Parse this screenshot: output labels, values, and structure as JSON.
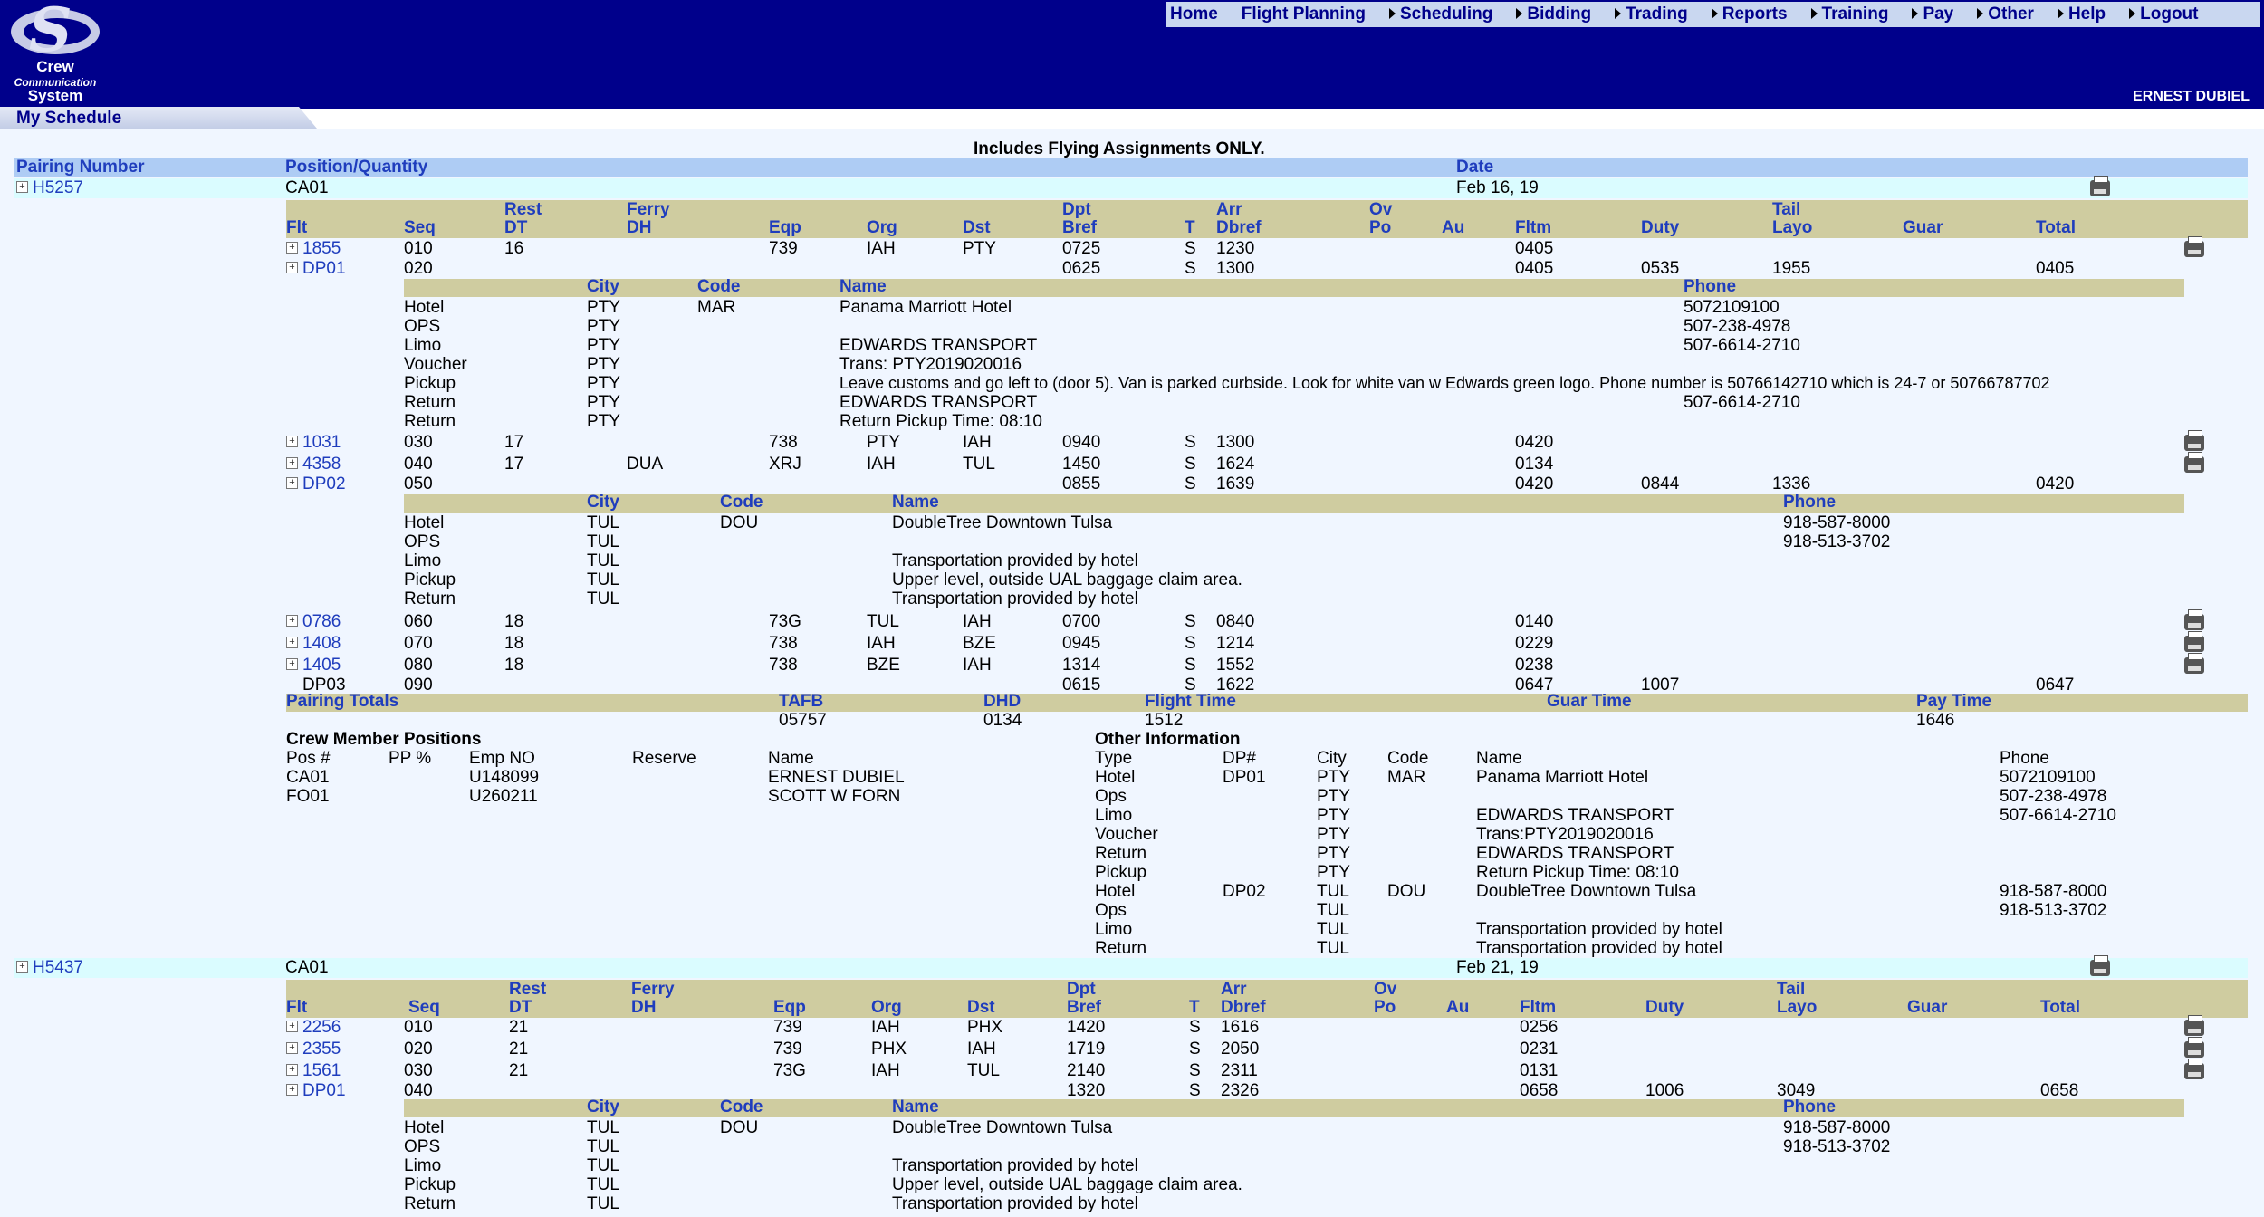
{
  "app": {
    "logo_line1": "Crew",
    "logo_line2": "Communication",
    "logo_line3": "System",
    "section": "My Schedule",
    "user": "ERNEST DUBIEL"
  },
  "menu": [
    {
      "label": "Home",
      "arrow": false
    },
    {
      "label": "Flight Planning",
      "arrow": false
    },
    {
      "label": "Scheduling",
      "arrow": true
    },
    {
      "label": "Bidding",
      "arrow": true
    },
    {
      "label": "Trading",
      "arrow": true
    },
    {
      "label": "Reports",
      "arrow": true
    },
    {
      "label": "Training",
      "arrow": true
    },
    {
      "label": "Pay",
      "arrow": true
    },
    {
      "label": "Other",
      "arrow": true
    },
    {
      "label": "Help",
      "arrow": true
    },
    {
      "label": "Logout",
      "arrow": true
    }
  ],
  "notice": "Includes Flying Assignments ONLY.",
  "top_headers": {
    "pairing": "Pairing Number",
    "position": "Position/Quantity",
    "date": "Date"
  },
  "colors": {
    "header_bar": "#00008b",
    "column_header_bg": "#cfcca0",
    "label_blue": "#1f3dbd",
    "top_header_bg": "#aeccf4",
    "pairing_row_bg": "#dafcff",
    "content_bg": "#f0f6ff"
  },
  "flight_cols": {
    "flt": "Flt",
    "seq": "Seq",
    "rest1": "Rest",
    "rest2": "DT",
    "ferry1": "Ferry",
    "ferry2": "DH",
    "eqp": "Eqp",
    "org": "Org",
    "dst": "Dst",
    "dpt1": "Dpt",
    "dpt2": "Bref",
    "t": "T",
    "arr1": "Arr",
    "arr2": "Dbref",
    "ov1": "Ov",
    "ov2": "Po",
    "au": "Au",
    "fltm": "Fltm",
    "duty": "Duty",
    "tail1": "Tail",
    "tail2": "Layo",
    "guar": "Guar",
    "total": "Total"
  },
  "layover_cols": {
    "city": "City",
    "code": "Code",
    "name": "Name",
    "phone": "Phone"
  },
  "pairings": [
    {
      "id": "H5257",
      "position": "CA01",
      "date": "Feb 16, 19",
      "rows": [
        {
          "kind": "flight",
          "flt": "1855",
          "expand": true,
          "printer": true,
          "seq": "010",
          "rest": "16",
          "dh": "",
          "eqp": "739",
          "org": "IAH",
          "dst": "PTY",
          "dpt": "0725",
          "t": "S",
          "arr": "1230",
          "fltm": "0405",
          "duty": "",
          "layo": "",
          "total": ""
        },
        {
          "kind": "flight",
          "flt": "DP01",
          "expand": true,
          "printer": false,
          "seq": "020",
          "rest": "",
          "dh": "",
          "eqp": "",
          "org": "",
          "dst": "",
          "dpt": "0625",
          "t": "S",
          "arr": "1300",
          "fltm": "0405",
          "duty": "0535",
          "layo": "1955",
          "total": "0405"
        },
        {
          "kind": "layover",
          "variant": "a",
          "items": [
            {
              "type": "Hotel",
              "city": "PTY",
              "code": "MAR",
              "name": "Panama Marriott Hotel",
              "phone": "5072109100"
            },
            {
              "type": "OPS",
              "city": "PTY",
              "code": "",
              "name": "",
              "phone": "507-238-4978"
            },
            {
              "type": "Limo",
              "city": "PTY",
              "code": "",
              "name": "EDWARDS TRANSPORT",
              "phone": "507-6614-2710"
            },
            {
              "type": "Voucher",
              "city": "PTY",
              "code": "",
              "name": "Trans: PTY2019020016",
              "phone": ""
            },
            {
              "type": "Pickup",
              "city": "PTY",
              "code": "",
              "name": "Leave customs and go left to (door 5). Van is parked curbside. Look for white van w Edwards green logo. Phone number is 50766142710 which is 24-7 or 50766787702",
              "phone": ""
            },
            {
              "type": "Return",
              "city": "PTY",
              "code": "",
              "name": "EDWARDS TRANSPORT",
              "phone": "507-6614-2710"
            },
            {
              "type": "Return",
              "city": "PTY",
              "code": "",
              "name": "Return Pickup Time: 08:10",
              "phone": ""
            }
          ]
        },
        {
          "kind": "flight",
          "flt": "1031",
          "expand": true,
          "printer": true,
          "seq": "030",
          "rest": "17",
          "dh": "",
          "eqp": "738",
          "org": "PTY",
          "dst": "IAH",
          "dpt": "0940",
          "t": "S",
          "arr": "1300",
          "fltm": "0420",
          "duty": "",
          "layo": "",
          "total": ""
        },
        {
          "kind": "flight",
          "flt": "4358",
          "expand": true,
          "printer": true,
          "seq": "040",
          "rest": "17",
          "dh": "DUA",
          "eqp": "XRJ",
          "org": "IAH",
          "dst": "TUL",
          "dpt": "1450",
          "t": "S",
          "arr": "1624",
          "fltm": "0134",
          "duty": "",
          "layo": "",
          "total": ""
        },
        {
          "kind": "flight",
          "flt": "DP02",
          "expand": true,
          "printer": false,
          "seq": "050",
          "rest": "",
          "dh": "",
          "eqp": "",
          "org": "",
          "dst": "",
          "dpt": "0855",
          "t": "S",
          "arr": "1639",
          "fltm": "0420",
          "duty": "0844",
          "layo": "1336",
          "total": "0420"
        },
        {
          "kind": "layover",
          "variant": "b",
          "items": [
            {
              "type": "Hotel",
              "city": "TUL",
              "code": "DOU",
              "name": "DoubleTree Downtown Tulsa",
              "phone": "918-587-8000"
            },
            {
              "type": "OPS",
              "city": "TUL",
              "code": "",
              "name": "",
              "phone": "918-513-3702"
            },
            {
              "type": "Limo",
              "city": "TUL",
              "code": "",
              "name": "Transportation provided by hotel",
              "phone": ""
            },
            {
              "type": "Pickup",
              "city": "TUL",
              "code": "",
              "name": "Upper level, outside UAL baggage claim area.",
              "phone": ""
            },
            {
              "type": "Return",
              "city": "TUL",
              "code": "",
              "name": "Transportation provided by hotel",
              "phone": ""
            }
          ]
        },
        {
          "kind": "flight",
          "flt": "0786",
          "expand": true,
          "printer": true,
          "seq": "060",
          "rest": "18",
          "dh": "",
          "eqp": "73G",
          "org": "TUL",
          "dst": "IAH",
          "dpt": "0700",
          "t": "S",
          "arr": "0840",
          "fltm": "0140",
          "duty": "",
          "layo": "",
          "total": ""
        },
        {
          "kind": "flight",
          "flt": "1408",
          "expand": true,
          "printer": true,
          "seq": "070",
          "rest": "18",
          "dh": "",
          "eqp": "738",
          "org": "IAH",
          "dst": "BZE",
          "dpt": "0945",
          "t": "S",
          "arr": "1214",
          "fltm": "0229",
          "duty": "",
          "layo": "",
          "total": ""
        },
        {
          "kind": "flight",
          "flt": "1405",
          "expand": true,
          "printer": true,
          "seq": "080",
          "rest": "18",
          "dh": "",
          "eqp": "738",
          "org": "BZE",
          "dst": "IAH",
          "dpt": "1314",
          "t": "S",
          "arr": "1552",
          "fltm": "0238",
          "duty": "",
          "layo": "",
          "total": ""
        },
        {
          "kind": "flight",
          "flt": "DP03",
          "expand": false,
          "printer": false,
          "seq": "090",
          "rest": "",
          "dh": "",
          "eqp": "",
          "org": "",
          "dst": "",
          "dpt": "0615",
          "t": "S",
          "arr": "1622",
          "fltm": "0647",
          "duty": "1007",
          "layo": "",
          "total": "0647"
        }
      ],
      "totals": {
        "label": "Pairing Totals",
        "tafb_label": "TAFB",
        "tafb": "05757",
        "dhd_label": "DHD",
        "dhd": "0134",
        "flight_label": "Flight Time",
        "flight": "1512",
        "guar_label": "Guar Time",
        "guar": "",
        "pay_label": "Pay Time",
        "pay": "1646"
      },
      "crew": {
        "title": "Crew Member Positions",
        "headers": {
          "pos": "Pos #",
          "pp": "PP %",
          "emp": "Emp NO",
          "reserve": "Reserve",
          "name": "Name"
        },
        "rows": [
          {
            "pos": "CA01",
            "pp": "",
            "emp": "U148099",
            "reserve": "",
            "name": "ERNEST DUBIEL"
          },
          {
            "pos": "FO01",
            "pp": "",
            "emp": "U260211",
            "reserve": "",
            "name": "SCOTT W FORN"
          }
        ]
      },
      "other": {
        "title": "Other Information",
        "headers": {
          "type": "Type",
          "dp": "DP#",
          "city": "City",
          "code": "Code",
          "name": "Name",
          "phone": "Phone"
        },
        "rows": [
          {
            "type": "Hotel",
            "dp": "DP01",
            "city": "PTY",
            "code": "MAR",
            "name": "Panama Marriott Hotel",
            "phone": "5072109100"
          },
          {
            "type": "Ops",
            "dp": "",
            "city": "PTY",
            "code": "",
            "name": "",
            "phone": "507-238-4978"
          },
          {
            "type": "Limo",
            "dp": "",
            "city": "PTY",
            "code": "",
            "name": "EDWARDS TRANSPORT",
            "phone": "507-6614-2710"
          },
          {
            "type": "Voucher",
            "dp": "",
            "city": "PTY",
            "code": "",
            "name": "Trans:PTY2019020016",
            "phone": ""
          },
          {
            "type": "Return",
            "dp": "",
            "city": "PTY",
            "code": "",
            "name": "EDWARDS TRANSPORT",
            "phone": ""
          },
          {
            "type": "Pickup",
            "dp": "",
            "city": "PTY",
            "code": "",
            "name": "Return Pickup Time: 08:10",
            "phone": ""
          },
          {
            "type": "Hotel",
            "dp": "DP02",
            "city": "TUL",
            "code": "DOU",
            "name": "DoubleTree Downtown Tulsa",
            "phone": "918-587-8000"
          },
          {
            "type": "Ops",
            "dp": "",
            "city": "TUL",
            "code": "",
            "name": "",
            "phone": "918-513-3702"
          },
          {
            "type": "Limo",
            "dp": "",
            "city": "TUL",
            "code": "",
            "name": "Transportation provided by hotel",
            "phone": ""
          },
          {
            "type": "Return",
            "dp": "",
            "city": "TUL",
            "code": "",
            "name": "Transportation provided by hotel",
            "phone": ""
          }
        ]
      }
    },
    {
      "id": "H5437",
      "position": "CA01",
      "date": "Feb 21, 19",
      "rows": [
        {
          "kind": "flight",
          "flt": "2256",
          "expand": true,
          "printer": true,
          "seq": "010",
          "rest": "21",
          "dh": "",
          "eqp": "739",
          "org": "IAH",
          "dst": "PHX",
          "dpt": "1420",
          "t": "S",
          "arr": "1616",
          "fltm": "0256",
          "duty": "",
          "layo": "",
          "total": ""
        },
        {
          "kind": "flight",
          "flt": "2355",
          "expand": true,
          "printer": true,
          "seq": "020",
          "rest": "21",
          "dh": "",
          "eqp": "739",
          "org": "PHX",
          "dst": "IAH",
          "dpt": "1719",
          "t": "S",
          "arr": "2050",
          "fltm": "0231",
          "duty": "",
          "layo": "",
          "total": ""
        },
        {
          "kind": "flight",
          "flt": "1561",
          "expand": true,
          "printer": true,
          "seq": "030",
          "rest": "21",
          "dh": "",
          "eqp": "73G",
          "org": "IAH",
          "dst": "TUL",
          "dpt": "2140",
          "t": "S",
          "arr": "2311",
          "fltm": "0131",
          "duty": "",
          "layo": "",
          "total": ""
        },
        {
          "kind": "flight",
          "flt": "DP01",
          "expand": true,
          "printer": false,
          "seq": "040",
          "rest": "",
          "dh": "",
          "eqp": "",
          "org": "",
          "dst": "",
          "dpt": "1320",
          "t": "S",
          "arr": "2326",
          "fltm": "0658",
          "duty": "1006",
          "layo": "3049",
          "total": "0658"
        },
        {
          "kind": "layover",
          "variant": "b",
          "items": [
            {
              "type": "Hotel",
              "city": "TUL",
              "code": "DOU",
              "name": "DoubleTree Downtown Tulsa",
              "phone": "918-587-8000"
            },
            {
              "type": "OPS",
              "city": "TUL",
              "code": "",
              "name": "",
              "phone": "918-513-3702"
            },
            {
              "type": "Limo",
              "city": "TUL",
              "code": "",
              "name": "Transportation provided by hotel",
              "phone": ""
            },
            {
              "type": "Pickup",
              "city": "TUL",
              "code": "",
              "name": "Upper level, outside UAL baggage claim area.",
              "phone": ""
            },
            {
              "type": "Return",
              "city": "TUL",
              "code": "",
              "name": "Transportation provided by hotel",
              "phone": ""
            }
          ]
        }
      ]
    }
  ]
}
